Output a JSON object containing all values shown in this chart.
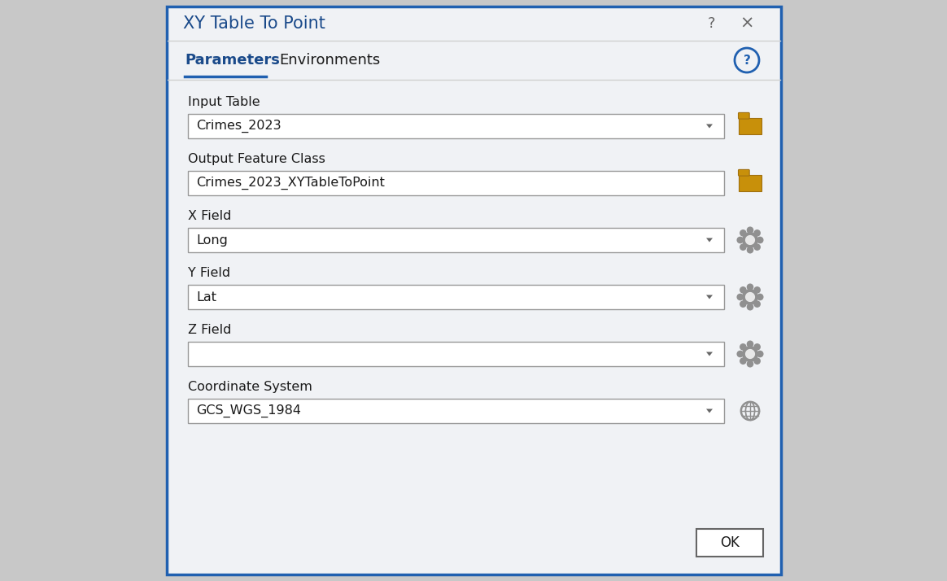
{
  "title": "XY Table To Point",
  "tab_params": "Parameters",
  "tab_envs": "Environments",
  "dialog_bg": "#f0f2f5",
  "border_color": "#2060b0",
  "field_labels": [
    "Input Table",
    "Output Feature Class",
    "X Field",
    "Y Field",
    "Z Field",
    "Coordinate System"
  ],
  "field_values": [
    "Crimes_2023",
    "Crimes_2023_XYTableToPoint",
    "Long",
    "Lat",
    "",
    "GCS_WGS_1984"
  ],
  "field_has_dropdown": [
    true,
    false,
    true,
    true,
    true,
    true
  ],
  "field_has_folder_icon": [
    true,
    true,
    false,
    false,
    false,
    false
  ],
  "field_has_gear_icon": [
    false,
    false,
    true,
    true,
    true,
    false
  ],
  "field_has_globe_icon": [
    false,
    false,
    false,
    false,
    false,
    true
  ],
  "title_color": "#1a4a8a",
  "label_color": "#1a1a1a",
  "text_color": "#1a1a1a",
  "input_bg": "#ffffff",
  "input_border": "#999999",
  "tab_underline_color": "#2060b0",
  "help_circle_color": "#2060b0",
  "ok_button_text": "OK",
  "outer_bg": "#c8c8c8",
  "folder_color": "#c8900a",
  "folder_edge": "#a07010",
  "gear_color": "#909090",
  "gear_inner": "#e8e8e8",
  "globe_color": "#909090",
  "titlebar_bg": "#f8f8f8",
  "arrow_color": "#666666"
}
